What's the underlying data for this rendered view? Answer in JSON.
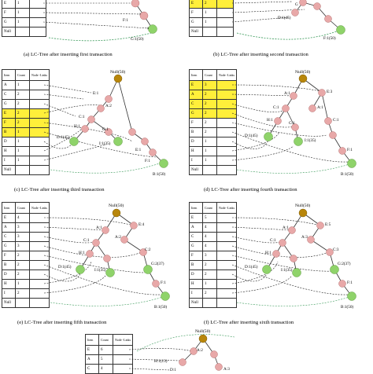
{
  "panels": {
    "a": {
      "caption": "(a) LC-Tree after inserting first transaction",
      "rows": [
        {
          "item": "E",
          "count": "1"
        },
        {
          "item": "F",
          "count": "1"
        },
        {
          "item": "G",
          "count": "1"
        },
        {
          "item": "Null",
          "count": ""
        }
      ],
      "labels": {
        "f": "F:1",
        "g": "G:1(50)"
      }
    },
    "b": {
      "caption": "(b) LC-Tree after inserting  second transaction",
      "rows": [
        {
          "item": "E",
          "count": "2",
          "hl": true
        },
        {
          "item": "F",
          "count": "1"
        },
        {
          "item": "G",
          "count": "1"
        },
        {
          "item": "Null",
          "count": ""
        }
      ],
      "labels": {
        "top": "G",
        "d": "D:1(45)",
        "f": "F:1(50)"
      }
    },
    "c": {
      "caption": "(c) LC-Tree after inserting third transaction",
      "header": [
        "Item",
        "Count",
        "Node -Links"
      ],
      "rows": [
        {
          "item": "A",
          "count": "1"
        },
        {
          "item": "C",
          "count": "2"
        },
        {
          "item": "G",
          "count": "2"
        },
        {
          "item": "E",
          "count": "2",
          "hl": true
        },
        {
          "item": "F",
          "count": "2",
          "hl": true
        },
        {
          "item": "B",
          "count": "1",
          "hl": true
        },
        {
          "item": "D",
          "count": "1"
        },
        {
          "item": "H",
          "count": "1"
        },
        {
          "item": "I",
          "count": "1"
        },
        {
          "item": "Null",
          "count": ""
        }
      ],
      "labels": {
        "null": "Null(50)",
        "e": "E:1",
        "a": "A:2",
        "c": "C:1",
        "h": "H:1",
        "d": "D:1(45)",
        "g": "G:1",
        "i": "I:1(35)",
        "e2": "E:1",
        "f": "F:1",
        "b": "B:1(50)"
      }
    },
    "d": {
      "caption": "(d) LC-Tree after inserting fourth transaction",
      "header": [
        "Item",
        "Count",
        "Node -Links"
      ],
      "rows": [
        {
          "item": "E",
          "count": "3",
          "hl": true
        },
        {
          "item": "A",
          "count": "2",
          "hl": true
        },
        {
          "item": "C",
          "count": "2",
          "hl": true
        },
        {
          "item": "G",
          "count": "2",
          "hl": true
        },
        {
          "item": "F",
          "count": "2"
        },
        {
          "item": "B",
          "count": "2"
        },
        {
          "item": "D",
          "count": "1"
        },
        {
          "item": "H",
          "count": "1"
        },
        {
          "item": "I",
          "count": "1"
        },
        {
          "item": "Null",
          "count": ""
        }
      ],
      "labels": {
        "null": "Null(50)",
        "a": "A:1",
        "e": "E:3",
        "a2": "A:1",
        "c": "C:1",
        "c2": "C:1",
        "h": "H:1",
        "g": "G:1",
        "d": "D:1(45)",
        "i": "I:1(35)",
        "f": "F:1",
        "b": "B:1(50)"
      }
    },
    "e": {
      "caption": "(e) LC-Tree after inserting  fifth transaction",
      "header": [
        "Item",
        "Count",
        "Node -Links"
      ],
      "rows": [
        {
          "item": "E",
          "count": "4"
        },
        {
          "item": "A",
          "count": "3"
        },
        {
          "item": "C",
          "count": "3"
        },
        {
          "item": "G",
          "count": "3"
        },
        {
          "item": "F",
          "count": "2"
        },
        {
          "item": "B",
          "count": "2"
        },
        {
          "item": "D",
          "count": "2"
        },
        {
          "item": "H",
          "count": "1"
        },
        {
          "item": "I",
          "count": "2"
        },
        {
          "item": "Null",
          "count": ""
        }
      ],
      "labels": {
        "null": "Null(50)",
        "a": "A:1",
        "e": "E:4",
        "c": "C:1",
        "a2": "A:2",
        "h": "H:1",
        "d": "D:1(45)",
        "i": "I:1(35)",
        "c2": "C:2",
        "g": "G:2(37)",
        "f": "F:1",
        "b": "B:1(50)"
      }
    },
    "f": {
      "caption": "(f) LC-Tree after inserting sixth transaction",
      "header": [
        "Item",
        "Count",
        "Node -Links"
      ],
      "rows": [
        {
          "item": "E",
          "count": "5"
        },
        {
          "item": "A",
          "count": "4"
        },
        {
          "item": "C",
          "count": "4"
        },
        {
          "item": "G",
          "count": "4"
        },
        {
          "item": "F",
          "count": "3"
        },
        {
          "item": "B",
          "count": "2"
        },
        {
          "item": "D",
          "count": "2"
        },
        {
          "item": "H",
          "count": "1"
        },
        {
          "item": "I",
          "count": "2"
        },
        {
          "item": "Null",
          "count": ""
        }
      ],
      "labels": {
        "null": "Null(50)",
        "a": "A:1",
        "e": "E:5",
        "c": "C:1",
        "a2": "A:3",
        "h": "H:1",
        "c2": "C:3",
        "d": "D:1(45)",
        "i": "I:1(35)",
        "g": "G:2(37)",
        "f": "F:1",
        "b": "B:1(50)"
      }
    },
    "g": {
      "header": [
        "Item",
        "Count",
        "Node -Links"
      ],
      "rows": [
        {
          "item": "E",
          "count": "6"
        },
        {
          "item": "A",
          "count": "5"
        },
        {
          "item": "C",
          "count": "4"
        }
      ],
      "labels": {
        "null": "Null(50)",
        "a": "A:2",
        "h": "H:1(13)",
        "d": "D:1",
        "a3": "A:3"
      }
    }
  }
}
